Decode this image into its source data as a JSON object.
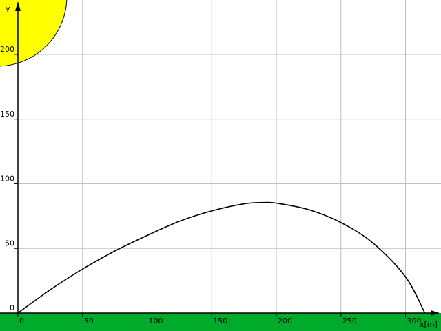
{
  "colors": {
    "background": "#ffffff",
    "grid": "#c0c0c0",
    "axis": "#000000",
    "ground": "#00aa2b",
    "sun": "#ffff00",
    "trajectory": "#000000"
  },
  "chart_data": {
    "type": "line",
    "xlabel": "x[m]",
    "ylabel": "y",
    "xlim": [
      -4.5,
      325
    ],
    "ylim": [
      -1.5,
      240
    ],
    "grid": true,
    "x_ticks": [
      0,
      50,
      100,
      150,
      200,
      250,
      300
    ],
    "y_ticks": [
      0,
      50,
      100,
      150,
      200
    ],
    "x_tick_labels": [
      "0",
      "50",
      "100",
      "150",
      "200",
      "250",
      "300"
    ],
    "y_tick_labels": [
      "0",
      "50",
      "100",
      "150",
      "200"
    ],
    "series": [
      {
        "x": [
          0,
          25,
          50,
          75,
          100,
          125,
          150,
          175,
          190,
          200,
          225,
          250,
          275,
          300,
          315
        ],
        "y": [
          0,
          18,
          34,
          48,
          60,
          71,
          79,
          84.5,
          85.5,
          85,
          80,
          70,
          54,
          28,
          0
        ]
      }
    ]
  },
  "scene": {
    "sun_icon": "sun-circle"
  }
}
